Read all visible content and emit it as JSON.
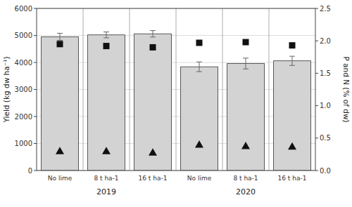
{
  "chart_data": {
    "type": "bar",
    "categories": [
      "No lime",
      "8 t ha-1",
      "16 t ha-1",
      "No lime",
      "8 t ha-1",
      "16 t ha-1"
    ],
    "series": [
      {
        "type": "bar",
        "color": "#d3d3d3",
        "values": [
          4950,
          5020,
          5060,
          3840,
          3960,
          4060
        ],
        "errors": [
          130,
          110,
          120,
          180,
          200,
          170
        ]
      },
      {
        "type": "scatter",
        "axis": "y2",
        "marker": "square",
        "color": "#111111",
        "values": [
          1.95,
          1.92,
          1.9,
          1.97,
          1.98,
          1.93
        ]
      },
      {
        "type": "scatter",
        "axis": "y2",
        "marker": "triangle",
        "color": "#111111",
        "values": [
          0.3,
          0.3,
          0.28,
          0.4,
          0.38,
          0.37
        ]
      }
    ],
    "ylabel": "Yield (kg dw ha⁻¹)",
    "y2label": "P and N (% of dw)",
    "ylim": [
      0,
      6000
    ],
    "yticks": [
      0,
      1000,
      2000,
      3000,
      4000,
      5000,
      6000
    ],
    "y2lim": [
      0.0,
      2.5
    ],
    "y2ticks": [
      {
        "value": 0.0,
        "label": "0.0"
      },
      0.5,
      {
        "value": 1.0,
        "label": "1.0"
      },
      1.5,
      {
        "value": 2.0,
        "label": "2.0"
      },
      2.5
    ],
    "annotations": [
      "2019",
      "2020"
    ],
    "grid": true
  }
}
